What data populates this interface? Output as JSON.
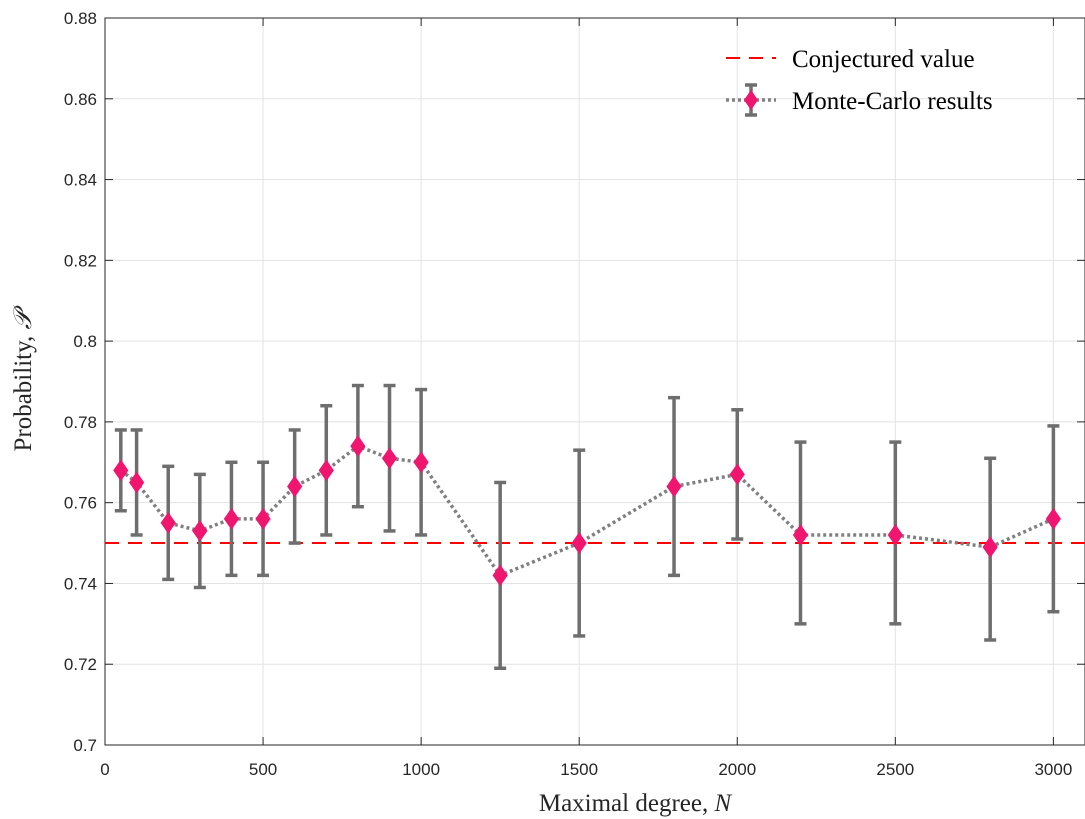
{
  "chart_data": {
    "type": "scatter",
    "title": "",
    "xlabel": "Maximal degree, ",
    "xlabel_var": "N",
    "ylabel": "Probability, ",
    "ylabel_var": "𝒫",
    "xlim": [
      0,
      3100
    ],
    "ylim": [
      0.7,
      0.88
    ],
    "xticks": [
      0,
      500,
      1000,
      1500,
      2000,
      2500,
      3000
    ],
    "xtick_labels": [
      "0",
      "500",
      "1000",
      "1500",
      "2000",
      "2500",
      "3000"
    ],
    "yticks": [
      0.7,
      0.72,
      0.74,
      0.76,
      0.78,
      0.8,
      0.82,
      0.84,
      0.86,
      0.88
    ],
    "ytick_labels": [
      "0.7",
      "0.72",
      "0.74",
      "0.76",
      "0.78",
      "0.8",
      "0.82",
      "0.84",
      "0.86",
      "0.88"
    ],
    "grid": true,
    "legend_position": "top-right",
    "series": [
      {
        "name": "Conjectured value",
        "kind": "hline",
        "y": 0.75,
        "color": "#ff0000",
        "style": "dashed"
      },
      {
        "name": "Monte-Carlo results",
        "kind": "errorbar",
        "marker": "diamond",
        "marker_color": "#f0156e",
        "line_color": "#808080",
        "line_style": "dotted",
        "errorbar_color": "#6e6e6e",
        "x": [
          50,
          100,
          200,
          300,
          400,
          500,
          600,
          700,
          800,
          900,
          1000,
          1250,
          1500,
          1800,
          2000,
          2200,
          2500,
          2800,
          3000
        ],
        "y": [
          0.768,
          0.765,
          0.755,
          0.753,
          0.756,
          0.756,
          0.764,
          0.768,
          0.774,
          0.771,
          0.77,
          0.742,
          0.75,
          0.764,
          0.767,
          0.752,
          0.752,
          0.749,
          0.756
        ],
        "lower": [
          0.758,
          0.752,
          0.741,
          0.739,
          0.742,
          0.742,
          0.75,
          0.752,
          0.759,
          0.753,
          0.752,
          0.719,
          0.727,
          0.742,
          0.751,
          0.73,
          0.73,
          0.726,
          0.733
        ],
        "upper": [
          0.778,
          0.778,
          0.769,
          0.767,
          0.77,
          0.77,
          0.778,
          0.784,
          0.789,
          0.789,
          0.788,
          0.765,
          0.773,
          0.786,
          0.783,
          0.775,
          0.775,
          0.771,
          0.779
        ]
      }
    ]
  }
}
